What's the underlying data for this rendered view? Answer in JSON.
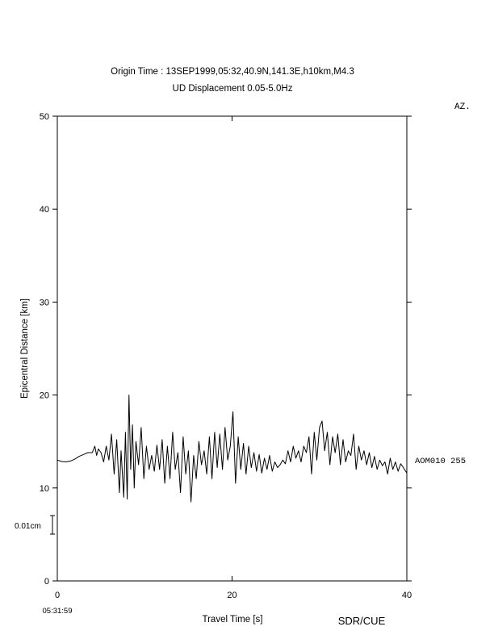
{
  "header": {
    "title": "Origin Time : 13SEP1999,05:32,40.9N,141.3E,h10km,M4.3",
    "subtitle": "UD Displacement 0.05-5.0Hz",
    "az_label": "AZ."
  },
  "footer": {
    "start_time": "05:31:59",
    "credit": "SDR/CUE"
  },
  "scale_bar": {
    "label": "0.01cm"
  },
  "chart_data": {
    "type": "line",
    "title": "Origin Time : 13SEP1999,05:32,40.9N,141.3E,h10km,M4.3",
    "subtitle": "UD Displacement 0.05-5.0Hz",
    "xlabel": "Travel Time [s]",
    "ylabel": "Epicentral Distance [km]",
    "xlim": [
      0,
      40
    ],
    "ylim": [
      0,
      50
    ],
    "x_ticks": [
      0,
      20,
      40
    ],
    "x_tick_labels": [
      "0",
      "20",
      "40"
    ],
    "y_ticks": [
      0,
      10,
      20,
      30,
      40,
      50
    ],
    "y_tick_labels": [
      "0",
      "10",
      "20",
      "30",
      "40",
      "50"
    ],
    "grid": false,
    "stations": [
      {
        "name": "AOM010",
        "azimuth": "255",
        "distance_km": 13,
        "x": [
          0,
          0.5,
          1,
          1.5,
          2,
          2.5,
          3,
          3.5,
          4,
          4.3,
          4.5,
          4.7,
          5,
          5.3,
          5.6,
          5.9,
          6.2,
          6.5,
          6.8,
          7.1,
          7.3,
          7.6,
          7.8,
          8.0,
          8.2,
          8.4,
          8.6,
          8.8,
          9.0,
          9.3,
          9.6,
          9.9,
          10.2,
          10.5,
          10.8,
          11.1,
          11.4,
          11.7,
          12,
          12.3,
          12.6,
          12.9,
          13.2,
          13.5,
          13.8,
          14.1,
          14.4,
          14.7,
          15.0,
          15.3,
          15.6,
          15.9,
          16.2,
          16.5,
          16.8,
          17.1,
          17.4,
          17.7,
          18.0,
          18.3,
          18.6,
          18.9,
          19.2,
          19.5,
          19.8,
          20.1,
          20.4,
          20.7,
          21.0,
          21.3,
          21.6,
          21.9,
          22.2,
          22.5,
          22.8,
          23.1,
          23.4,
          23.7,
          24.0,
          24.3,
          24.6,
          24.9,
          25.2,
          25.5,
          25.8,
          26.1,
          26.4,
          26.7,
          27.0,
          27.3,
          27.6,
          27.9,
          28.2,
          28.5,
          28.8,
          29.1,
          29.4,
          29.7,
          30.0,
          30.3,
          30.6,
          30.9,
          31.2,
          31.5,
          31.8,
          32.1,
          32.4,
          32.7,
          33.0,
          33.3,
          33.6,
          33.9,
          34.2,
          34.5,
          34.8,
          35.1,
          35.4,
          35.7,
          36.0,
          36.3,
          36.6,
          36.9,
          37.2,
          37.5,
          37.8,
          38.1,
          38.4,
          38.7,
          39.0,
          39.3,
          39.6,
          40.0
        ],
        "y": [
          13.0,
          12.85,
          12.8,
          12.9,
          13.1,
          13.4,
          13.6,
          13.8,
          13.8,
          14.5,
          13.5,
          14.2,
          13.8,
          12.8,
          14.5,
          13.0,
          15.8,
          11.5,
          15.2,
          9.5,
          14.0,
          9.0,
          16.0,
          8.8,
          20.0,
          12.0,
          16.8,
          10.0,
          15.0,
          12.5,
          16.5,
          11.0,
          14.5,
          12.0,
          13.5,
          11.8,
          14.6,
          12.0,
          15.2,
          10.5,
          14.5,
          11.0,
          16.0,
          12.0,
          13.8,
          9.5,
          15.5,
          11.5,
          14.0,
          8.5,
          13.5,
          11.0,
          15.0,
          12.5,
          14.0,
          11.5,
          15.5,
          11.0,
          16.0,
          12.2,
          15.8,
          12.0,
          16.5,
          13.0,
          14.5,
          18.2,
          10.5,
          15.5,
          12.0,
          14.8,
          11.5,
          14.5,
          12.2,
          13.8,
          11.8,
          13.6,
          11.6,
          13.2,
          12.0,
          13.5,
          11.8,
          12.8,
          12.2,
          12.5,
          13.0,
          12.6,
          14.0,
          12.8,
          14.5,
          13.2,
          14.0,
          12.8,
          14.5,
          13.8,
          15.5,
          11.5,
          16.0,
          13.0,
          16.5,
          17.2,
          14.0,
          16.0,
          12.5,
          15.5,
          13.8,
          15.8,
          12.5,
          15.2,
          12.8,
          14.0,
          13.5,
          15.8,
          12.0,
          14.5,
          13.0,
          14.0,
          12.5,
          13.8,
          12.2,
          13.4,
          12.0,
          13.0,
          12.4,
          12.8,
          11.5,
          13.2,
          12.0,
          12.8,
          11.8,
          12.6,
          12.2,
          11.6
        ]
      }
    ]
  }
}
